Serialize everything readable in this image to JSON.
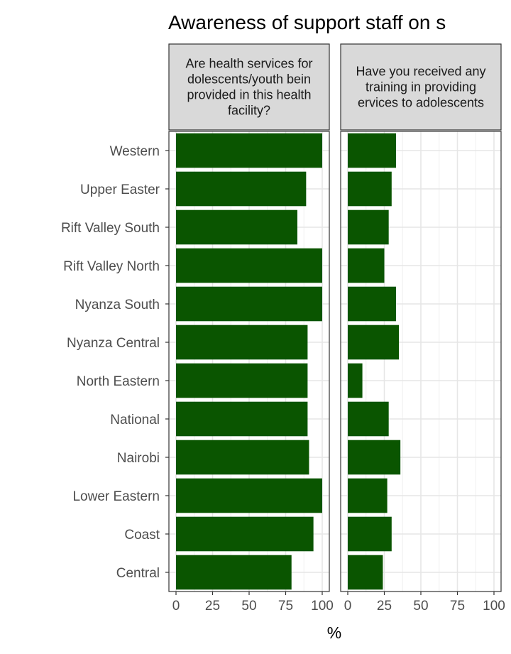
{
  "chart_data": {
    "type": "bar",
    "orientation": "horizontal",
    "title": "Awareness of support staff on s",
    "xlabel": "%",
    "ylabel": "",
    "xlim": [
      0,
      100
    ],
    "x_ticks": [
      "0",
      "25",
      "50",
      "75",
      "100"
    ],
    "grid": true,
    "bar_color": "#0a5500",
    "categories": [
      "Western",
      "Upper Easter",
      "Rift Valley South",
      "Rift Valley North",
      "Nyanza South",
      "Nyanza Central",
      "North Eastern",
      "National",
      "Nairobi",
      "Lower Eastern",
      "Coast",
      "Central"
    ],
    "panels": [
      {
        "strip_lines": [
          "Are health services for",
          "dolescents/youth bein",
          "provided in this health",
          "facility?"
        ],
        "values": [
          100,
          89,
          83,
          100,
          100,
          90,
          90,
          90,
          91,
          100,
          94,
          79
        ]
      },
      {
        "strip_lines": [
          "Have you received any",
          "training in providing",
          "ervices to adolescents"
        ],
        "values": [
          33,
          30,
          28,
          25,
          33,
          35,
          10,
          28,
          36,
          27,
          30,
          24
        ]
      }
    ]
  }
}
